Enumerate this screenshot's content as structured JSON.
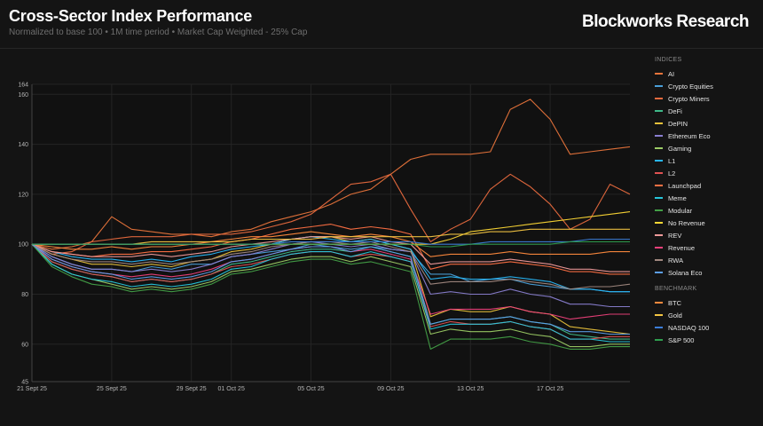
{
  "header": {
    "title": "Cross-Sector Index Performance",
    "subtitle": "Normalized to base 100 • 1M time period • Market Cap Weighted - 25% Cap",
    "brand": "Blockworks Research"
  },
  "legend": {
    "indices_label": "INDICES",
    "benchmark_label": "BENCHMARK"
  },
  "chart_data": {
    "type": "line",
    "title": "Cross-Sector Index Performance",
    "subtitle": "Normalized to base 100 • 1M time period • Market Cap Weighted - 25% Cap",
    "ylim": [
      45,
      164
    ],
    "yticks": [
      45,
      60,
      80,
      100,
      120,
      140,
      160,
      164
    ],
    "xlim": [
      0,
      30
    ],
    "x_tick_labels": [
      {
        "day": 0,
        "label": "21 Sept 25"
      },
      {
        "day": 4,
        "label": "25 Sept 25"
      },
      {
        "day": 8,
        "label": "29 Sept 25"
      },
      {
        "day": 10,
        "label": "01 Oct 25"
      },
      {
        "day": 14,
        "label": "05 Oct 25"
      },
      {
        "day": 18,
        "label": "09 Oct 25"
      },
      {
        "day": 22,
        "label": "13 Oct 25"
      },
      {
        "day": 26,
        "label": "17 Oct 25"
      }
    ],
    "grid": true,
    "legend_position": "right",
    "x": [
      0,
      1,
      2,
      3,
      4,
      5,
      6,
      7,
      8,
      9,
      10,
      11,
      12,
      13,
      14,
      15,
      16,
      17,
      18,
      19,
      20,
      21,
      22,
      23,
      24,
      25,
      26,
      27,
      28,
      29,
      30
    ],
    "series": [
      {
        "name": "AI",
        "group": "indices",
        "color": "#e8743b",
        "values": [
          100,
          98,
          99,
          101,
          111,
          106,
          105,
          104,
          104,
          103,
          105,
          106,
          109,
          111,
          113,
          116,
          120,
          122,
          128,
          134,
          136,
          136,
          136,
          137,
          154,
          158,
          150,
          136,
          137,
          138,
          139
        ]
      },
      {
        "name": "Crypto Equities",
        "group": "indices",
        "color": "#4a9fd8",
        "values": [
          100,
          95,
          92,
          90,
          90,
          89,
          91,
          90,
          92,
          92,
          95,
          96,
          97,
          98,
          100,
          99,
          98,
          99,
          98,
          97,
          88,
          88,
          85,
          86,
          86,
          84,
          83,
          82,
          82,
          81,
          81
        ]
      },
      {
        "name": "Crypto Miners",
        "group": "indices",
        "color": "#e86a3e",
        "values": [
          100,
          96,
          97,
          101,
          102,
          103,
          103,
          103,
          104,
          104,
          104,
          105,
          107,
          109,
          112,
          118,
          124,
          125,
          128,
          114,
          101,
          106,
          110,
          122,
          128,
          123,
          116,
          106,
          110,
          124,
          120
        ]
      },
      {
        "name": "DeFi",
        "group": "indices",
        "color": "#3fba8a",
        "values": [
          100,
          93,
          90,
          88,
          87,
          85,
          86,
          85,
          86,
          88,
          92,
          93,
          95,
          97,
          98,
          98,
          97,
          99,
          97,
          95,
          68,
          70,
          70,
          70,
          71,
          69,
          68,
          64,
          63,
          62,
          62
        ]
      },
      {
        "name": "DePIN",
        "group": "indices",
        "color": "#e8c13b",
        "values": [
          100,
          96,
          94,
          92,
          92,
          91,
          92,
          91,
          93,
          94,
          97,
          98,
          100,
          102,
          103,
          103,
          101,
          102,
          100,
          98,
          71,
          74,
          73,
          73,
          75,
          73,
          72,
          67,
          66,
          65,
          64
        ]
      },
      {
        "name": "Ethereum Eco",
        "group": "indices",
        "color": "#8a7fd1",
        "values": [
          100,
          95,
          92,
          90,
          90,
          89,
          90,
          89,
          90,
          92,
          95,
          96,
          98,
          100,
          101,
          100,
          99,
          100,
          98,
          97,
          80,
          81,
          80,
          80,
          82,
          80,
          79,
          76,
          76,
          75,
          75
        ]
      },
      {
        "name": "Gaming",
        "group": "indices",
        "color": "#9ccc65",
        "values": [
          100,
          92,
          88,
          86,
          84,
          82,
          83,
          82,
          83,
          85,
          89,
          90,
          92,
          94,
          95,
          95,
          93,
          95,
          93,
          91,
          64,
          66,
          65,
          65,
          66,
          64,
          63,
          59,
          59,
          60,
          60
        ]
      },
      {
        "name": "L1",
        "group": "indices",
        "color": "#29b6f6",
        "values": [
          100,
          97,
          95,
          94,
          94,
          93,
          94,
          93,
          95,
          96,
          98,
          99,
          100,
          102,
          103,
          102,
          101,
          102,
          100,
          98,
          86,
          87,
          86,
          86,
          87,
          86,
          85,
          82,
          82,
          81,
          81
        ]
      },
      {
        "name": "L2",
        "group": "indices",
        "color": "#e05252",
        "values": [
          100,
          93,
          90,
          88,
          87,
          85,
          86,
          85,
          86,
          88,
          91,
          92,
          94,
          96,
          97,
          97,
          95,
          96,
          95,
          93,
          67,
          69,
          68,
          68,
          69,
          67,
          66,
          62,
          62,
          63,
          63
        ]
      },
      {
        "name": "Launchpad",
        "group": "indices",
        "color": "#ff7043",
        "values": [
          100,
          97,
          96,
          95,
          96,
          96,
          97,
          97,
          98,
          99,
          101,
          102,
          104,
          106,
          107,
          108,
          106,
          107,
          106,
          104,
          90,
          92,
          92,
          92,
          93,
          92,
          91,
          89,
          89,
          88,
          88
        ]
      },
      {
        "name": "Meme",
        "group": "indices",
        "color": "#26c6da",
        "values": [
          100,
          92,
          88,
          86,
          85,
          83,
          84,
          83,
          84,
          86,
          90,
          91,
          94,
          96,
          97,
          97,
          95,
          97,
          95,
          93,
          66,
          68,
          68,
          68,
          69,
          67,
          66,
          62,
          62,
          61,
          61
        ]
      },
      {
        "name": "Modular",
        "group": "indices",
        "color": "#43a047",
        "values": [
          100,
          91,
          87,
          84,
          83,
          81,
          82,
          81,
          82,
          84,
          88,
          89,
          91,
          93,
          94,
          94,
          92,
          93,
          91,
          89,
          58,
          62,
          62,
          62,
          63,
          61,
          60,
          58,
          58,
          59,
          59
        ]
      },
      {
        "name": "No Revenue",
        "group": "indices",
        "color": "#fdd835",
        "values": [
          100,
          100,
          100,
          100,
          100,
          100,
          100,
          100,
          100,
          100,
          100,
          100,
          100,
          100,
          100,
          100,
          100,
          100,
          100,
          100,
          100,
          102,
          105,
          106,
          107,
          108,
          109,
          110,
          111,
          112,
          113
        ]
      },
      {
        "name": "REV",
        "group": "indices",
        "color": "#ef9a9a",
        "values": [
          100,
          97,
          96,
          95,
          95,
          95,
          96,
          95,
          96,
          97,
          99,
          100,
          101,
          102,
          103,
          103,
          102,
          103,
          101,
          100,
          92,
          93,
          93,
          93,
          94,
          93,
          92,
          90,
          90,
          89,
          89
        ]
      },
      {
        "name": "Revenue",
        "group": "indices",
        "color": "#ec407a",
        "values": [
          100,
          94,
          91,
          89,
          88,
          87,
          88,
          87,
          88,
          90,
          93,
          94,
          96,
          98,
          99,
          99,
          97,
          98,
          96,
          94,
          72,
          74,
          74,
          74,
          75,
          73,
          72,
          70,
          71,
          72,
          72
        ]
      },
      {
        "name": "RWA",
        "group": "indices",
        "color": "#a1887f",
        "values": [
          100,
          96,
          94,
          93,
          93,
          92,
          93,
          92,
          93,
          94,
          96,
          97,
          99,
          100,
          101,
          101,
          100,
          101,
          99,
          97,
          84,
          85,
          85,
          85,
          86,
          85,
          84,
          82,
          83,
          83,
          84
        ]
      },
      {
        "name": "Solana Eco",
        "group": "indices",
        "color": "#5c9ee8",
        "values": [
          100,
          94,
          91,
          89,
          88,
          86,
          87,
          86,
          87,
          89,
          93,
          94,
          96,
          98,
          99,
          99,
          97,
          99,
          97,
          95,
          68,
          70,
          70,
          70,
          71,
          69,
          68,
          65,
          65,
          64,
          64
        ]
      },
      {
        "name": "BTC",
        "group": "benchmark",
        "color": "#ff8a3d",
        "values": [
          100,
          99,
          98,
          98,
          99,
          98,
          99,
          99,
          100,
          101,
          102,
          103,
          103,
          104,
          105,
          104,
          103,
          104,
          103,
          101,
          95,
          96,
          96,
          96,
          97,
          96,
          96,
          96,
          96,
          97,
          97
        ]
      },
      {
        "name": "Gold",
        "group": "benchmark",
        "color": "#f4c542",
        "values": [
          100,
          100,
          100,
          100,
          100,
          100,
          101,
          101,
          101,
          101,
          101,
          102,
          102,
          102,
          102,
          103,
          103,
          103,
          103,
          103,
          103,
          104,
          104,
          105,
          105,
          106,
          106,
          106,
          106,
          106,
          106
        ]
      },
      {
        "name": "NASDAQ 100",
        "group": "benchmark",
        "color": "#3b7dd8",
        "values": [
          100,
          100,
          100,
          100,
          100,
          100,
          100,
          100,
          100,
          100,
          100,
          100,
          100,
          101,
          101,
          101,
          101,
          101,
          101,
          101,
          100,
          100,
          100,
          101,
          101,
          101,
          101,
          101,
          102,
          102,
          102
        ]
      },
      {
        "name": "S&P 500",
        "group": "benchmark",
        "color": "#2e9e4f",
        "values": [
          100,
          100,
          100,
          100,
          100,
          100,
          100,
          100,
          100,
          100,
          100,
          100,
          100,
          100,
          100,
          100,
          100,
          100,
          100,
          100,
          99,
          99,
          100,
          100,
          100,
          100,
          100,
          101,
          101,
          101,
          101
        ]
      }
    ]
  }
}
